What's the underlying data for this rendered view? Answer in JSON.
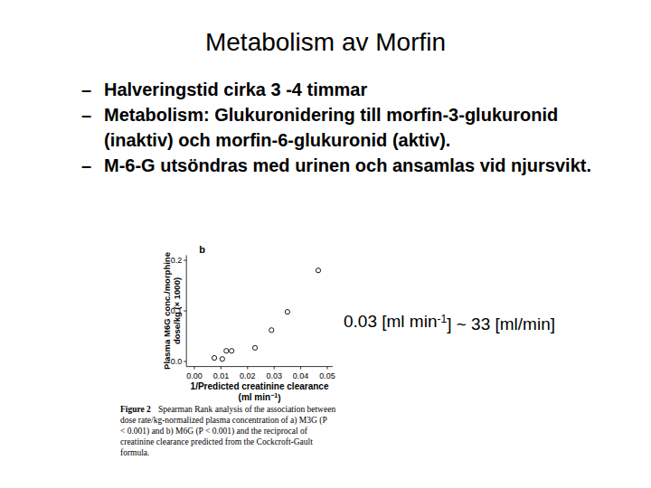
{
  "slide": {
    "title": "Metabolism av Morfin",
    "bullets": [
      [
        "Halveringstid cirka 3 -4 timmar"
      ],
      [
        "Metabolism: Glukuronidering till morfin-3-glukuronid",
        "(inaktiv) och morfin-6-glukuronid (aktiv)."
      ],
      [
        "M-6-G  utsöndras med urinen och  ansamlas vid njursvikt."
      ]
    ],
    "bullet_mark": "–",
    "annotation": {
      "before": "0.03 [ml min",
      "sup": "-1",
      "after": "] ~ 33 [ml/min]"
    },
    "caption": {
      "label": "Figure 2",
      "lines": [
        "Spearman Rank analysis of the association between",
        "dose rate/kg-normalized plasma concentration of a) M3G (P",
        "< 0.001) and b) M6G (P < 0.001) and the reciprocal of",
        "creatinine clearance predicted from the Cockcroft-Gault",
        "formula."
      ]
    }
  },
  "chart_data": {
    "type": "scatter",
    "panel": "b",
    "x_label": [
      "1/Predicted creatinine clearance",
      {
        "before": "(ml min",
        "sup": "−1",
        "after": ")"
      }
    ],
    "y_label": [
      "Plasma M6G conc./morphine",
      "dose/kg (× 1000)"
    ],
    "x": [
      0.0075,
      0.0105,
      0.012,
      0.014,
      0.0228,
      0.029,
      0.035,
      0.0466
    ],
    "values": [
      0.007,
      0.005,
      0.021,
      0.021,
      0.027,
      0.062,
      0.098,
      0.18
    ],
    "marker": "open_circle",
    "color": "#000000",
    "xlim": [
      -0.003,
      0.052
    ],
    "ylim": [
      -0.01,
      0.21
    ],
    "xticks": [
      {
        "value": 0,
        "label": "0.00"
      },
      {
        "value": 0.01,
        "label": "0.01"
      },
      {
        "value": 0.02,
        "label": "0.02"
      },
      {
        "value": 0.03,
        "label": "0.03"
      },
      {
        "value": 0.04,
        "label": "0.04"
      },
      {
        "value": 0.05,
        "label": "0.05"
      }
    ],
    "yticks": [
      {
        "value": 0,
        "label": "0.0"
      },
      0.1,
      0.2
    ],
    "grid": false
  }
}
